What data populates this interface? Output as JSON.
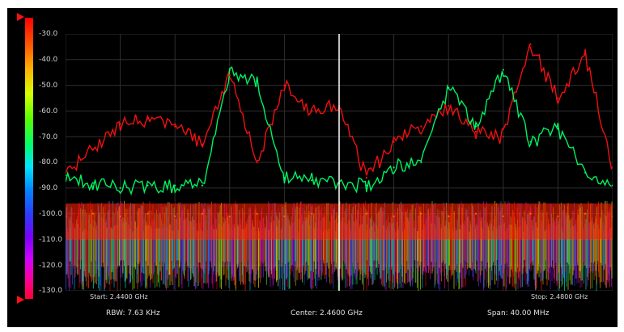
{
  "colors": {
    "background": "#000000",
    "grid": "#2f2f2f",
    "center_line": "#ffffff",
    "text": "#d8d8d8"
  },
  "y_axis": {
    "ticks": [
      "-30.0",
      "-40.0",
      "-50.0",
      "-60.0",
      "-70.0",
      "-80.0",
      "-90.0",
      "-100.0",
      "-110.0",
      "-120.0",
      "-130.0"
    ]
  },
  "frequency": {
    "start_label": "Start: 2.4400 GHz",
    "stop_label": "Stop: 2.4800 GHz",
    "rbw_label": "RBW: 7.63 KHz",
    "center_label": "Center: 2.4600 GHz",
    "span_label": "Span: 40.00 MHz"
  },
  "icons": {
    "top_marker": "triangle-marker-icon",
    "bottom_marker": "triangle-marker-icon"
  },
  "chart_data": {
    "type": "line",
    "xlabel": "",
    "ylabel": "",
    "xlim": [
      2.44,
      2.48
    ],
    "ylim": [
      -130,
      -30
    ],
    "grid": true,
    "series": [
      {
        "x": [
          2.44,
          2.442,
          2.444,
          2.446,
          2.448,
          2.45,
          2.452,
          2.454,
          2.456,
          2.458,
          2.46,
          2.462,
          2.464,
          2.466,
          2.468,
          2.47,
          2.472,
          2.474,
          2.476,
          2.478,
          2.48
        ],
        "values": [
          -101,
          -100,
          -101,
          -100,
          -101,
          -100,
          -101,
          -100,
          -101,
          -100,
          -101,
          -100,
          -101,
          -100,
          -101,
          -100,
          -101,
          -100,
          -101,
          -100,
          -101
        ]
      },
      {
        "x": [
          2.44,
          2.442,
          2.444,
          2.446,
          2.448,
          2.45,
          2.452,
          2.454,
          2.456,
          2.458,
          2.46,
          2.462,
          2.464,
          2.466,
          2.468,
          2.47,
          2.472,
          2.474,
          2.476,
          2.478,
          2.48
        ],
        "values": [
          -84,
          -75,
          -65,
          -63,
          -66,
          -73,
          -46,
          -80,
          -50,
          -60,
          -58,
          -86,
          -72,
          -66,
          -58,
          -68,
          -70,
          -34,
          -55,
          -38,
          -82
        ]
      },
      {
        "x": [
          2.44,
          2.442,
          2.444,
          2.446,
          2.448,
          2.45,
          2.452,
          2.454,
          2.456,
          2.458,
          2.46,
          2.462,
          2.464,
          2.466,
          2.468,
          2.47,
          2.472,
          2.474,
          2.476,
          2.478,
          2.48
        ],
        "values": [
          -85,
          -88,
          -90,
          -89,
          -89,
          -89,
          -44,
          -48,
          -86,
          -87,
          -88,
          -89,
          -82,
          -80,
          -51,
          -66,
          -44,
          -72,
          -67,
          -84,
          -89
        ]
      }
    ]
  }
}
